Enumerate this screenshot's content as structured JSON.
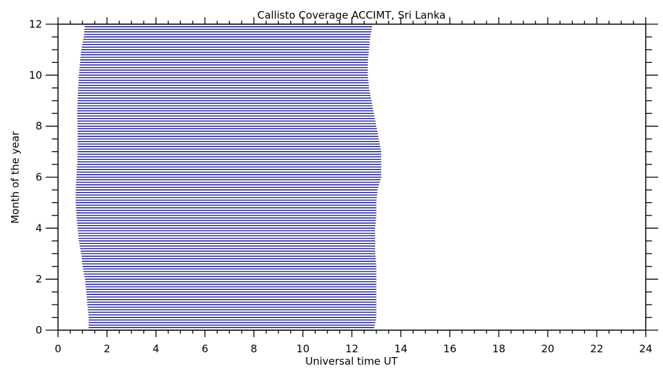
{
  "chart_data": {
    "type": "area",
    "title": "Callisto Coverage ACCIMT, Sri Lanka",
    "xlabel": "Universal time UT",
    "ylabel": "Month of the year",
    "xlim": [
      0,
      24
    ],
    "ylim": [
      0,
      12
    ],
    "xticks": [
      "0",
      "2",
      "4",
      "6",
      "8",
      "10",
      "12",
      "14",
      "16",
      "18",
      "20",
      "22",
      "24"
    ],
    "yticks": [
      "0",
      "2",
      "4",
      "6",
      "8",
      "10",
      "12"
    ],
    "grid": false,
    "legend": "none",
    "line_color": "#00008b",
    "series": [
      {
        "month": [
          0.0,
          0.5,
          1.0,
          1.5,
          2.0,
          2.5,
          3.0,
          3.5,
          4.0,
          4.5,
          5.0,
          5.5,
          6.0,
          6.5,
          7.0,
          7.5,
          8.0,
          8.5,
          9.0,
          9.5,
          10.0,
          10.5,
          11.0,
          11.5,
          12.0
        ],
        "start_ut": [
          1.25,
          1.25,
          1.2,
          1.15,
          1.1,
          1.0,
          0.95,
          0.85,
          0.8,
          0.75,
          0.72,
          0.72,
          0.75,
          0.78,
          0.8,
          0.8,
          0.8,
          0.78,
          0.8,
          0.82,
          0.85,
          0.9,
          0.95,
          1.05,
          1.1
        ],
        "end_ut": [
          12.9,
          13.0,
          13.0,
          13.0,
          13.0,
          13.0,
          12.95,
          12.95,
          12.95,
          13.0,
          13.0,
          13.05,
          13.2,
          13.2,
          13.2,
          13.1,
          13.0,
          12.9,
          12.8,
          12.7,
          12.65,
          12.65,
          12.7,
          12.75,
          12.85
        ]
      }
    ]
  }
}
